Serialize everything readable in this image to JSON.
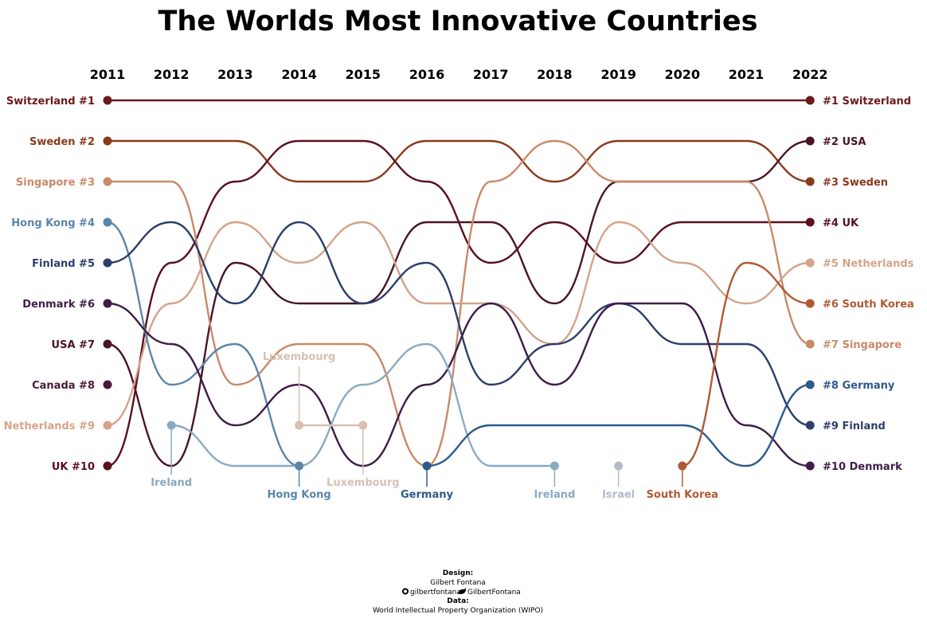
{
  "chart_data": {
    "type": "line",
    "title": "The Worlds Most Innovative Countries",
    "x": [
      2011,
      2012,
      2013,
      2014,
      2015,
      2016,
      2017,
      2018,
      2019,
      2020,
      2021,
      2022
    ],
    "ylim": [
      1,
      10
    ],
    "y_inverted": true,
    "left_labels": [
      "Switzerland #1",
      "Sweden #2",
      "Singapore #3",
      "Hong Kong #4",
      "Finland #5",
      "Denmark #6",
      "USA #7",
      "Canada #8",
      "Netherlands #9",
      "UK #10"
    ],
    "right_labels": [
      "#1 Switzerland",
      "#2 USA",
      "#3 Sweden",
      "#4 UK",
      "#5 Netherlands",
      "#6 South Korea",
      "#7 Singapore",
      "#8 Germany",
      "#9 Finland",
      "#10 Denmark"
    ],
    "series": [
      {
        "name": "Switzerland",
        "color": "#6b1a1a",
        "values": [
          1,
          1,
          1,
          1,
          1,
          1,
          1,
          1,
          1,
          1,
          1,
          1
        ]
      },
      {
        "name": "Sweden",
        "color": "#8a3a1c",
        "values": [
          2,
          2,
          2,
          3,
          3,
          2,
          2,
          3,
          2,
          2,
          2,
          3
        ]
      },
      {
        "name": "USA",
        "color": "#4a1426",
        "values": [
          7,
          10,
          5,
          6,
          6,
          4,
          4,
          6,
          3,
          3,
          3,
          2
        ]
      },
      {
        "name": "UK",
        "color": "#5a1020",
        "values": [
          10,
          5,
          3,
          2,
          2,
          3,
          5,
          4,
          5,
          4,
          4,
          4
        ]
      },
      {
        "name": "Singapore",
        "color": "#c98a6a",
        "values": [
          3,
          3,
          8,
          7,
          7,
          10,
          3,
          2,
          3,
          3,
          3,
          7
        ]
      },
      {
        "name": "Netherlands",
        "color": "#d4a38a",
        "values": [
          9,
          6,
          4,
          5,
          4,
          6,
          6,
          7,
          4,
          5,
          6,
          5
        ]
      },
      {
        "name": "Hong Kong",
        "color": "#5a86a8",
        "values": [
          4,
          8,
          7,
          10,
          null,
          null,
          null,
          null,
          null,
          null,
          null,
          null
        ]
      },
      {
        "name": "Finland",
        "color": "#2c3e6b",
        "values": [
          5,
          4,
          6,
          4,
          6,
          5,
          8,
          7,
          6,
          7,
          7,
          9
        ]
      },
      {
        "name": "Denmark",
        "color": "#3e1d48",
        "values": [
          6,
          7,
          9,
          8,
          10,
          8,
          6,
          8,
          6,
          6,
          9,
          10
        ]
      },
      {
        "name": "Canada",
        "color": "#4a1a36",
        "values": [
          8,
          null,
          null,
          null,
          null,
          null,
          null,
          null,
          null,
          null,
          null,
          null
        ]
      },
      {
        "name": "Ireland",
        "color": "#8aaac2",
        "values": [
          null,
          9,
          10,
          10,
          8,
          7,
          10,
          10,
          null,
          null,
          null,
          null
        ]
      },
      {
        "name": "Luxembourg",
        "color": "#d9bfb2",
        "values": [
          null,
          null,
          null,
          9,
          9,
          null,
          null,
          null,
          null,
          null,
          null,
          null
        ]
      },
      {
        "name": "Germany",
        "color": "#2e5a8a",
        "values": [
          null,
          null,
          null,
          null,
          null,
          10,
          9,
          9,
          9,
          9,
          10,
          8
        ]
      },
      {
        "name": "Israel",
        "color": "#b3bcc8",
        "values": [
          null,
          null,
          null,
          null,
          null,
          null,
          null,
          null,
          10,
          null,
          null,
          null
        ]
      },
      {
        "name": "South Korea",
        "color": "#b05a34",
        "values": [
          null,
          null,
          null,
          null,
          null,
          null,
          null,
          null,
          null,
          10,
          5,
          6
        ]
      }
    ],
    "annotations": [
      {
        "text": "Ireland",
        "x": 2012,
        "y": 9,
        "color": "#8aaac2",
        "side": "below"
      },
      {
        "text": "Hong Kong",
        "x": 2014,
        "y": 10,
        "color": "#5a86a8",
        "side": "below"
      },
      {
        "text": "Luxembourg",
        "x": 2014,
        "y": 9,
        "color": "#d9bfb2",
        "side": "above"
      },
      {
        "text": "Luxembourg",
        "x": 2015,
        "y": 9,
        "color": "#d9bfb2",
        "side": "below"
      },
      {
        "text": "Germany",
        "x": 2016,
        "y": 10,
        "color": "#2e5a8a",
        "side": "below"
      },
      {
        "text": "Ireland",
        "x": 2018,
        "y": 10,
        "color": "#8aaac2",
        "side": "below"
      },
      {
        "text": "Israel",
        "x": 2019,
        "y": 10,
        "color": "#b3bcc8",
        "side": "below"
      },
      {
        "text": "South Korea",
        "x": 2020,
        "y": 10,
        "color": "#b05a34",
        "side": "below"
      }
    ]
  },
  "credits": {
    "design_heading": "Design:",
    "designer": "Gilbert Fontana",
    "handles": "gilbertfontana",
    "handles2": "GilbertFontana",
    "data_heading": "Data:",
    "source": "World Intellectual Property Organization (WIPO)",
    "github_icon": "github-icon",
    "twitter_icon": "twitter-icon"
  }
}
